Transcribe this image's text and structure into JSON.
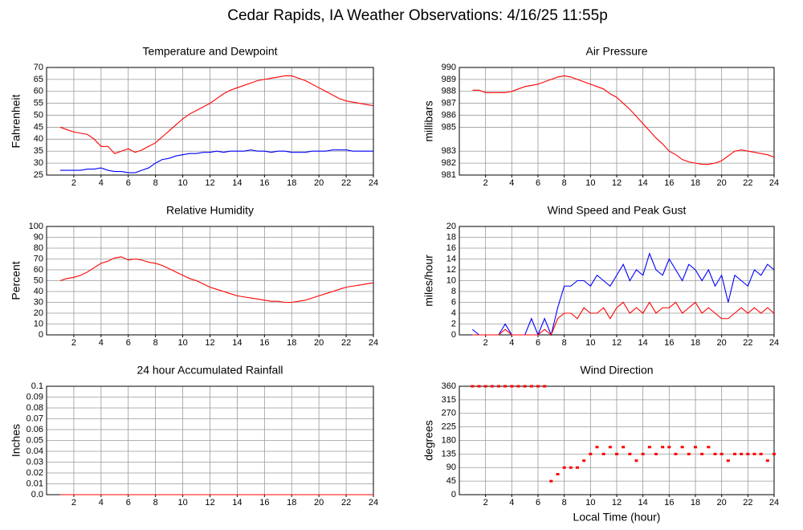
{
  "title": "Cedar Rapids, IA Weather Observations: 4/16/25 11:55p",
  "chart_data": [
    {
      "type": "line",
      "title": "Temperature and Dewpoint",
      "y_label": "Fahrenheit",
      "grid": true,
      "xlim": [
        0,
        24
      ],
      "xticks": [
        2,
        4,
        6,
        8,
        10,
        12,
        14,
        16,
        18,
        20,
        22,
        24
      ],
      "ylim": [
        25,
        70
      ],
      "yticks": [
        25,
        30,
        35,
        40,
        45,
        50,
        55,
        60,
        65,
        70
      ],
      "x": [
        1,
        1.5,
        2,
        2.5,
        3,
        3.5,
        4,
        4.5,
        5,
        5.5,
        6,
        6.5,
        7,
        7.5,
        8,
        8.5,
        9,
        9.5,
        10,
        10.5,
        11,
        11.5,
        12,
        12.5,
        13,
        13.5,
        14,
        14.5,
        15,
        15.5,
        16,
        16.5,
        17,
        17.5,
        18,
        18.5,
        19,
        19.5,
        20,
        20.5,
        21,
        21.5,
        22,
        22.5,
        23,
        23.5,
        24
      ],
      "series": [
        {
          "color": "#ff0000",
          "values": [
            45,
            44,
            43,
            42.5,
            42,
            40,
            37,
            37,
            34,
            35,
            36,
            34.5,
            35.5,
            37,
            38.5,
            41,
            43.5,
            46,
            48.5,
            50.5,
            52,
            53.5,
            55,
            57,
            59,
            60.5,
            61.5,
            62.5,
            63.5,
            64.5,
            65,
            65.5,
            66,
            66.5,
            66.5,
            65.5,
            64.5,
            63,
            61.5,
            60,
            58.5,
            57,
            56,
            55.5,
            55,
            54.5,
            54
          ]
        },
        {
          "color": "#0000ff",
          "values": [
            27,
            27,
            27,
            27,
            27.5,
            27.5,
            28,
            27,
            26.5,
            26.5,
            26,
            26,
            27,
            28,
            30,
            31.5,
            32,
            33,
            33.5,
            34,
            34,
            34.5,
            34.5,
            35,
            34.5,
            35,
            35,
            35,
            35.5,
            35,
            35,
            34.5,
            35,
            35,
            34.5,
            34.5,
            34.5,
            35,
            35,
            35,
            35.5,
            35.5,
            35.5,
            35,
            35,
            35,
            35
          ]
        }
      ]
    },
    {
      "type": "line",
      "title": "Air Pressure",
      "y_label": "millibars",
      "grid": true,
      "xlim": [
        0,
        24
      ],
      "xticks": [
        2,
        4,
        6,
        8,
        10,
        12,
        14,
        16,
        18,
        20,
        22,
        24
      ],
      "ylim": [
        981,
        990
      ],
      "yticks": [
        981,
        982,
        983,
        985,
        986,
        987,
        988,
        989,
        990
      ],
      "x": [
        1,
        1.5,
        2,
        2.5,
        3,
        3.5,
        4,
        4.5,
        5,
        5.5,
        6,
        6.5,
        7,
        7.5,
        8,
        8.5,
        9,
        9.5,
        10,
        10.5,
        11,
        11.5,
        12,
        12.5,
        13,
        13.5,
        14,
        14.5,
        15,
        15.5,
        16,
        16.5,
        17,
        17.5,
        18,
        18.5,
        19,
        19.5,
        20,
        20.5,
        21,
        21.5,
        22,
        22.5,
        23,
        23.5,
        24
      ],
      "series": [
        {
          "color": "#ff0000",
          "values": [
            988.1,
            988.1,
            987.9,
            987.9,
            987.9,
            987.9,
            988.0,
            988.2,
            988.4,
            988.5,
            988.6,
            988.8,
            989.0,
            989.2,
            989.3,
            989.2,
            989.0,
            988.8,
            988.6,
            988.4,
            988.2,
            987.8,
            987.5,
            987.0,
            986.5,
            985.9,
            985.3,
            984.7,
            984.1,
            983.6,
            983.0,
            982.7,
            982.3,
            982.1,
            982.0,
            981.9,
            981.9,
            982.0,
            982.2,
            982.6,
            983.0,
            983.1,
            983.0,
            982.9,
            982.8,
            982.7,
            982.5
          ]
        }
      ]
    },
    {
      "type": "line",
      "title": "Relative Humidity",
      "y_label": "Percent",
      "grid": true,
      "xlim": [
        0,
        24
      ],
      "xticks": [
        2,
        4,
        6,
        8,
        10,
        12,
        14,
        16,
        18,
        20,
        22,
        24
      ],
      "ylim": [
        0,
        100
      ],
      "yticks": [
        0,
        10,
        20,
        30,
        40,
        50,
        60,
        70,
        80,
        90,
        100
      ],
      "x": [
        1,
        1.5,
        2,
        2.5,
        3,
        3.5,
        4,
        4.5,
        5,
        5.5,
        6,
        6.5,
        7,
        7.5,
        8,
        8.5,
        9,
        9.5,
        10,
        10.5,
        11,
        11.5,
        12,
        12.5,
        13,
        13.5,
        14,
        14.5,
        15,
        15.5,
        16,
        16.5,
        17,
        17.5,
        18,
        18.5,
        19,
        19.5,
        20,
        20.5,
        21,
        21.5,
        22,
        22.5,
        23,
        23.5,
        24
      ],
      "series": [
        {
          "color": "#ff0000",
          "values": [
            50,
            52,
            53,
            55,
            58,
            62,
            66,
            68,
            71,
            72,
            69,
            70,
            69,
            67,
            66,
            64,
            61,
            58,
            55,
            52,
            50,
            47,
            44,
            42,
            40,
            38,
            36,
            35,
            34,
            33,
            32,
            31,
            31,
            30,
            30,
            31,
            32,
            34,
            36,
            38,
            40,
            42,
            44,
            45,
            46,
            47,
            48
          ]
        }
      ]
    },
    {
      "type": "line",
      "title": "Wind Speed and Peak Gust",
      "y_label": "miles/hour",
      "grid": true,
      "xlim": [
        0,
        24
      ],
      "xticks": [
        2,
        4,
        6,
        8,
        10,
        12,
        14,
        16,
        18,
        20,
        22,
        24
      ],
      "ylim": [
        0,
        20
      ],
      "yticks": [
        0,
        2,
        4,
        6,
        8,
        10,
        12,
        14,
        16,
        18,
        20
      ],
      "x": [
        1,
        1.5,
        2,
        2.5,
        3,
        3.5,
        4,
        4.5,
        5,
        5.5,
        6,
        6.5,
        7,
        7.5,
        8,
        8.5,
        9,
        9.5,
        10,
        10.5,
        11,
        11.5,
        12,
        12.5,
        13,
        13.5,
        14,
        14.5,
        15,
        15.5,
        16,
        16.5,
        17,
        17.5,
        18,
        18.5,
        19,
        19.5,
        20,
        20.5,
        21,
        21.5,
        22,
        22.5,
        23,
        23.5,
        24
      ],
      "series": [
        {
          "color": "#0000ff",
          "values": [
            1,
            0,
            0,
            0,
            0,
            2,
            0,
            0,
            0,
            3,
            0,
            3,
            0,
            5,
            9,
            9,
            10,
            10,
            9,
            11,
            10,
            9,
            11,
            13,
            10,
            12,
            11,
            15,
            12,
            11,
            14,
            12,
            10,
            13,
            12,
            10,
            12,
            9,
            11,
            6,
            11,
            10,
            9,
            12,
            11,
            13,
            12
          ]
        },
        {
          "color": "#ff0000",
          "values": [
            0,
            0,
            0,
            0,
            0,
            1,
            0,
            0,
            0,
            0,
            0,
            1,
            0,
            3,
            4,
            4,
            3,
            5,
            4,
            4,
            5,
            3,
            5,
            6,
            4,
            5,
            4,
            6,
            4,
            5,
            5,
            6,
            4,
            5,
            6,
            4,
            5,
            4,
            3,
            3,
            4,
            5,
            4,
            5,
            4,
            5,
            4
          ]
        }
      ]
    },
    {
      "type": "line",
      "title": "24 hour Accumulated Rainfall",
      "y_label": "Inches",
      "grid": true,
      "xlim": [
        0,
        24
      ],
      "xticks": [
        2,
        4,
        6,
        8,
        10,
        12,
        14,
        16,
        18,
        20,
        22,
        24
      ],
      "ylim": [
        0,
        0.1
      ],
      "yticks": [
        {
          "value": 0,
          "label": "0.0"
        },
        0.01,
        0.02,
        0.03,
        0.04,
        0.05,
        0.06,
        0.07,
        0.08,
        0.09,
        0.1
      ],
      "x": [
        1,
        24
      ],
      "series": [
        {
          "color": "#ff0000",
          "values": [
            0,
            0
          ]
        }
      ]
    },
    {
      "type": "scatter",
      "title": "Wind Direction",
      "y_label": "degrees",
      "x_label": "Local Time (hour)",
      "grid": true,
      "xlim": [
        0,
        24
      ],
      "xticks": [
        2,
        4,
        6,
        8,
        10,
        12,
        14,
        16,
        18,
        20,
        22,
        24
      ],
      "ylim": [
        0,
        360
      ],
      "yticks": [
        0,
        45,
        90,
        135,
        180,
        225,
        270,
        315,
        360
      ],
      "x": [
        1,
        1.5,
        2,
        2.5,
        3,
        3.5,
        4,
        4.5,
        5,
        5.5,
        6,
        6.5,
        7,
        7.5,
        8,
        8.5,
        9,
        9.5,
        10,
        10.5,
        11,
        11.5,
        12,
        12.5,
        13,
        13.5,
        14,
        14.5,
        15,
        15.5,
        16,
        16.5,
        17,
        17.5,
        18,
        18.5,
        19,
        19.5,
        20,
        20.5,
        21,
        21.5,
        22,
        22.5,
        23,
        23.5,
        24
      ],
      "series": [
        {
          "color": "#ff0000",
          "values": [
            360,
            360,
            360,
            360,
            360,
            360,
            360,
            360,
            360,
            360,
            360,
            360,
            45,
            68,
            90,
            90,
            90,
            113,
            135,
            158,
            135,
            158,
            135,
            158,
            135,
            113,
            135,
            158,
            135,
            158,
            158,
            135,
            158,
            135,
            158,
            135,
            158,
            135,
            135,
            113,
            135,
            135,
            135,
            135,
            135,
            113,
            135
          ]
        }
      ]
    }
  ]
}
